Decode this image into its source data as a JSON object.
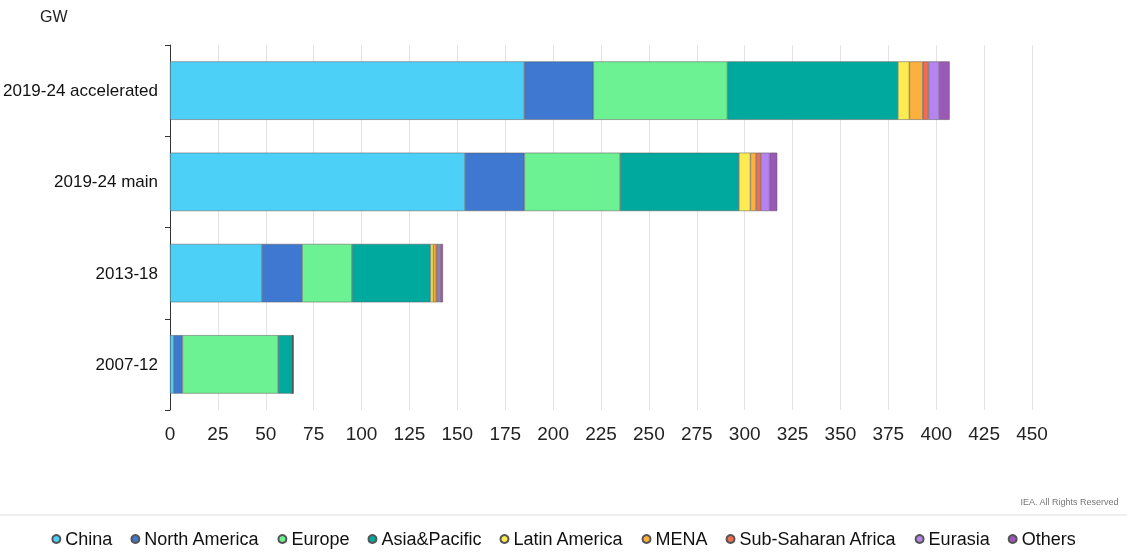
{
  "chart_data": {
    "type": "bar",
    "orientation": "horizontal",
    "stacked": true,
    "xlabel": "GW",
    "categories": [
      "2019-24 accelerated",
      "2019-24 main",
      "2013-18",
      "2007-12"
    ],
    "series": [
      {
        "name": "China",
        "color": "#4dd0f7",
        "values": [
          185,
          154,
          48,
          2
        ]
      },
      {
        "name": "North America",
        "color": "#3f78d1",
        "values": [
          36,
          31,
          21,
          4.5
        ]
      },
      {
        "name": "Europe",
        "color": "#6cf293",
        "values": [
          70,
          50,
          26,
          50
        ]
      },
      {
        "name": "Asia&Pacific",
        "color": "#00a99d",
        "values": [
          89,
          62,
          41,
          7.5
        ]
      },
      {
        "name": "Latin America",
        "color": "#fcec52",
        "values": [
          6,
          6,
          1.5,
          0
        ]
      },
      {
        "name": "MENA",
        "color": "#fbb040",
        "values": [
          7,
          3,
          1.5,
          0
        ]
      },
      {
        "name": "Sub-Saharan Africa",
        "color": "#f26d4f",
        "values": [
          3,
          2.5,
          1,
          0
        ]
      },
      {
        "name": "Eurasia",
        "color": "#b584f0",
        "values": [
          5.5,
          4.5,
          1,
          0
        ]
      },
      {
        "name": "Others",
        "color": "#9b59b6",
        "values": [
          5.5,
          4,
          1.5,
          0.5
        ]
      }
    ],
    "xlim": [
      0,
      450
    ],
    "xticks": [
      0,
      25,
      50,
      75,
      100,
      125,
      150,
      175,
      200,
      225,
      250,
      275,
      300,
      325,
      350,
      375,
      400,
      425,
      450
    ],
    "grid": "x",
    "legend": "bottom",
    "annotations": [
      "IEA. All Rights Reserved"
    ]
  }
}
